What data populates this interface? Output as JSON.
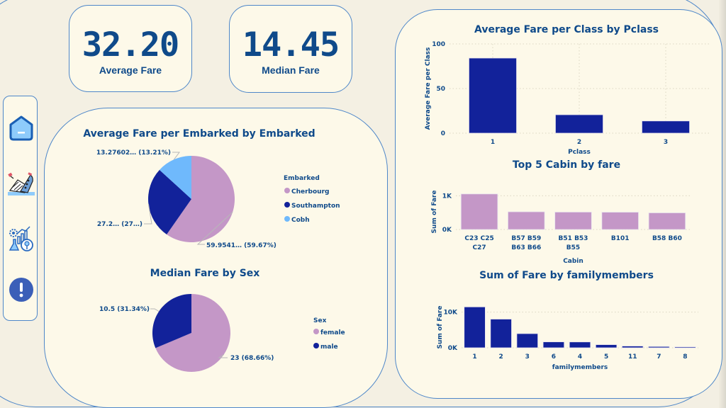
{
  "kpis": [
    {
      "value": "32.20",
      "label": "Average Fare"
    },
    {
      "value": "14.45",
      "label": "Median Fare"
    }
  ],
  "sidebar": {
    "items": [
      {
        "name": "home",
        "icon": "home-icon"
      },
      {
        "name": "titanic",
        "icon": "sinking-ship-icon"
      },
      {
        "name": "analytics",
        "icon": "analytics-icon"
      },
      {
        "name": "info",
        "icon": "exclamation-icon"
      }
    ]
  },
  "colors": {
    "pink": "#c497c7",
    "navy": "#12229a",
    "lightblue": "#6fb9fc",
    "text": "#0f4a8a",
    "card_bg": "#fdf9e9",
    "border": "#4e87c9"
  },
  "chart_data": [
    {
      "id": "embarked-pie",
      "type": "pie",
      "title": "Average Fare per Embarked by Embarked",
      "legend_title": "Embarked",
      "legend_position": "right",
      "slices": [
        {
          "label": "Cherbourg",
          "value": 59.9541,
          "percent": 59.67,
          "text": "59.9541… (59.67%)",
          "color": "#c497c7"
        },
        {
          "label": "Southampton",
          "value": 27.2,
          "percent": 27.12,
          "text": "27.2… (27…)",
          "color": "#12229a"
        },
        {
          "label": "Cobh",
          "value": 13.27602,
          "percent": 13.21,
          "text": "13.27602… (13.21%)",
          "color": "#6fb9fc"
        }
      ]
    },
    {
      "id": "sex-pie",
      "type": "pie",
      "title": "Median Fare by Sex",
      "legend_title": "Sex",
      "legend_position": "right",
      "slices": [
        {
          "label": "female",
          "value": 23,
          "percent": 68.66,
          "text": "23 (68.66%)",
          "color": "#c497c7"
        },
        {
          "label": "male",
          "value": 10.5,
          "percent": 31.34,
          "text": "10.5 (31.34%)",
          "color": "#12229a"
        }
      ]
    },
    {
      "id": "pclass-bar",
      "type": "bar",
      "title": "Average Fare per Class by Pclass",
      "xlabel": "Pclass",
      "ylabel": "Average Fare per Class",
      "categories": [
        "1",
        "2",
        "3"
      ],
      "values": [
        84.15,
        20.66,
        13.68
      ],
      "ylim": [
        0,
        100
      ],
      "yticks": [
        "0",
        "50",
        "100"
      ],
      "ytick_values": [
        0,
        50,
        100
      ],
      "grid": true,
      "color": "#12229a"
    },
    {
      "id": "cabin-bar",
      "type": "bar",
      "title": "Top 5 Cabin by fare",
      "xlabel": "Cabin",
      "ylabel": "Sum of Fare",
      "categories": [
        [
          "C23 C25",
          "C27"
        ],
        [
          "B57 B59",
          "B63 B66"
        ],
        [
          "B51 B53",
          "B55"
        ],
        [
          "B101"
        ],
        [
          "B58 B60"
        ]
      ],
      "values": [
        1054,
        525,
        516,
        513,
        494
      ],
      "ylim": [
        0,
        1050
      ],
      "yticks": [
        "0K",
        "1K"
      ],
      "ytick_values": [
        0,
        1000
      ],
      "grid": true,
      "color": "#c497c7"
    },
    {
      "id": "family-bar",
      "type": "bar",
      "title": "Sum of Fare by familymembers",
      "xlabel": "familymembers",
      "ylabel": "Sum of Fare",
      "categories": [
        "1",
        "2",
        "3",
        "6",
        "4",
        "5",
        "11",
        "7",
        "8"
      ],
      "values": [
        11450,
        8030,
        3970,
        1660,
        1640,
        880,
        490,
        360,
        280
      ],
      "ylim": [
        0,
        11500
      ],
      "yticks": [
        "0K",
        "10K"
      ],
      "ytick_values": [
        0,
        10000
      ],
      "grid": true,
      "color": "#12229a"
    }
  ]
}
